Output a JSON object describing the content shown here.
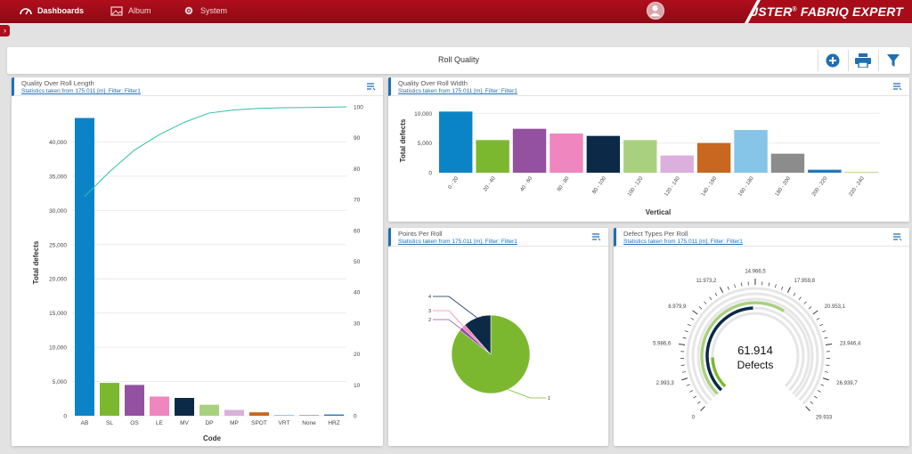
{
  "nav": {
    "dashboards": "Dashboards",
    "album": "Album",
    "system": "System"
  },
  "brand": "USTER",
  "brand_sup": "®",
  "brand_product": "FABRIQ EXPERT",
  "page_title": "Roll Quality",
  "panels": {
    "roll_length": {
      "title": "Quality Over Roll Length",
      "subtitle": "Statistics taken from 175.011 [m]. Filter: Filter1"
    },
    "roll_width": {
      "title": "Quality Over Roll Width",
      "subtitle": "Statistics taken from 175.011 [m]. Filter: Filter1"
    },
    "points": {
      "title": "Points Per Roll",
      "subtitle": "Statistics taken from 175.011 [m]. Filter: Filter1"
    },
    "defect_types": {
      "title": "Defect Types Per Roll",
      "subtitle": "Statistics taken from 175.011 [m]. Filter: Filter1"
    }
  },
  "colors": {
    "accent": "#b00e1c",
    "link": "#1f6fb3"
  },
  "chart_data": [
    {
      "type": "bar",
      "xlabel": "Code",
      "ylabel": "Total defects",
      "ylim": [
        0,
        45000
      ],
      "y_ticks": [
        "0",
        "5,000",
        "10,000",
        "15,000",
        "20,000",
        "25,000",
        "30,000",
        "35,000",
        "40,000"
      ],
      "y2_ticks": [
        "0",
        "10",
        "20",
        "30",
        "40",
        "50",
        "60",
        "70",
        "80",
        "90",
        "100"
      ],
      "categories": [
        "AB",
        "SL",
        "OS",
        "LE",
        "MV",
        "DP",
        "MP",
        "SPOT",
        "VRT",
        "None",
        "HRZ"
      ],
      "values": [
        43500,
        4800,
        4500,
        2800,
        2600,
        1600,
        850,
        500,
        120,
        90,
        180
      ],
      "colors": [
        "#0a84c6",
        "#7cb82f",
        "#9451a0",
        "#ef86bd",
        "#0c2a47",
        "#a9d07f",
        "#dbb0dc",
        "#c9661f",
        "#86c4e8",
        "#8c8c8c",
        "#2476b8"
      ],
      "cumulative": [
        71,
        79,
        86,
        91,
        95,
        98,
        99,
        99.5,
        99.7,
        99.8,
        100
      ],
      "grid": true
    },
    {
      "type": "bar",
      "xlabel": "Vertical",
      "ylabel": "Total defects",
      "ylim": [
        0,
        10000
      ],
      "y_ticks": [
        "0",
        "5,000",
        "10,000"
      ],
      "categories": [
        "0 - 20",
        "20 - 40",
        "40 - 60",
        "60 - 80",
        "80 - 100",
        "100 - 120",
        "120 - 140",
        "140 - 160",
        "160 - 180",
        "180 - 200",
        "200 - 220",
        "220 - 240"
      ],
      "values": [
        10300,
        5500,
        7400,
        6600,
        6200,
        5500,
        2900,
        5000,
        7200,
        3200,
        500,
        150
      ],
      "colors": [
        "#0a84c6",
        "#7cb82f",
        "#9451a0",
        "#ef86bd",
        "#0c2a47",
        "#a9d07f",
        "#dbb0dc",
        "#c9661f",
        "#86c4e8",
        "#8c8c8c",
        "#2476b8",
        "#bfd99a"
      ],
      "grid": true
    },
    {
      "type": "pie",
      "labels": [
        "1",
        "2",
        "3",
        "4"
      ],
      "values": [
        85.5,
        1.5,
        1.5,
        11.5
      ],
      "colors": [
        "#7cb82f",
        "#9451a0",
        "#ef86bd",
        "#0c2a47"
      ]
    },
    {
      "type": "gauge",
      "value_text": "61.914",
      "value_label": "Defects",
      "ticks": [
        "0",
        "2.993,3",
        "5.986,6",
        "8.979,9",
        "11.973,2",
        "14.966,5",
        "17.959,8",
        "20.953,1",
        "23.946,4",
        "26.939,7",
        "29.933"
      ],
      "ring_fill": [
        0.16,
        0.49,
        0.62
      ],
      "ring_colors": [
        "#7cb82f",
        "#0c2a47",
        "#a9d07f"
      ]
    }
  ]
}
